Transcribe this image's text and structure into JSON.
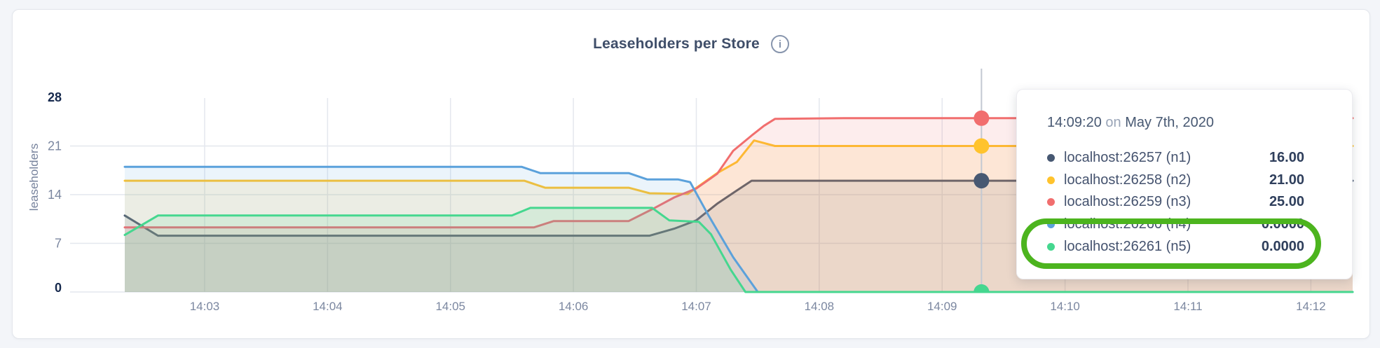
{
  "card": {
    "title": "Leaseholders per Store"
  },
  "chart_data": {
    "type": "area",
    "title": "Leaseholders per Store",
    "xlabel": "",
    "ylabel": "leaseholders",
    "ylim": [
      0,
      28
    ],
    "y_ticks": [
      0,
      7,
      14,
      21,
      28
    ],
    "y_gridlines": [
      7,
      14,
      21
    ],
    "x_domain_minutes": [
      2.35,
      12.34
    ],
    "x_ticks": [
      {
        "t": 3,
        "label": "14:03"
      },
      {
        "t": 4,
        "label": "14:04"
      },
      {
        "t": 5,
        "label": "14:05"
      },
      {
        "t": 6,
        "label": "14:06"
      },
      {
        "t": 7,
        "label": "14:07"
      },
      {
        "t": 8,
        "label": "14:08"
      },
      {
        "t": 9,
        "label": "14:09"
      },
      {
        "t": 10,
        "label": "14:10"
      },
      {
        "t": 11,
        "label": "14:11"
      },
      {
        "t": 12,
        "label": "14:12"
      }
    ],
    "grid_color": "#e4e7ee",
    "hover": {
      "t": 9.32,
      "label": "14:09:20",
      "line_color": "#c3c8d2"
    },
    "fill_opacity": 0.12,
    "series": [
      {
        "name": "localhost:26257 (n1)",
        "color": "#475872",
        "points": [
          [
            2.35,
            11
          ],
          [
            2.62,
            8.1
          ],
          [
            6.62,
            8.1
          ],
          [
            6.82,
            9.1
          ],
          [
            7.0,
            10.3
          ],
          [
            7.17,
            12.7
          ],
          [
            7.33,
            14.6
          ],
          [
            7.45,
            16
          ],
          [
            12.34,
            16
          ]
        ]
      },
      {
        "name": "localhost:26258 (n2)",
        "color": "#FFC32D",
        "points": [
          [
            2.35,
            16
          ],
          [
            5.6,
            16
          ],
          [
            5.77,
            15
          ],
          [
            6.45,
            15
          ],
          [
            6.62,
            14.2
          ],
          [
            6.93,
            14.1
          ],
          [
            7.17,
            17.1
          ],
          [
            7.33,
            18.7
          ],
          [
            7.47,
            21.8
          ],
          [
            7.64,
            21
          ],
          [
            12.34,
            21
          ]
        ]
      },
      {
        "name": "localhost:26259 (n3)",
        "color": "#F16E6E",
        "points": [
          [
            2.35,
            9.3
          ],
          [
            5.68,
            9.3
          ],
          [
            5.84,
            10.2
          ],
          [
            6.45,
            10.2
          ],
          [
            6.64,
            11.9
          ],
          [
            6.82,
            13.6
          ],
          [
            7.0,
            14.9
          ],
          [
            7.17,
            17
          ],
          [
            7.3,
            20.3
          ],
          [
            7.45,
            22.5
          ],
          [
            7.55,
            23.9
          ],
          [
            7.64,
            24.9
          ],
          [
            8.2,
            25
          ],
          [
            12.34,
            25
          ]
        ]
      },
      {
        "name": "localhost:26260 (n4)",
        "color": "#5BA1DB",
        "points": [
          [
            2.35,
            18
          ],
          [
            5.58,
            18
          ],
          [
            5.73,
            17.1
          ],
          [
            6.45,
            17.1
          ],
          [
            6.6,
            16.2
          ],
          [
            6.85,
            16.2
          ],
          [
            6.95,
            15.8
          ],
          [
            7.1,
            11
          ],
          [
            7.3,
            5
          ],
          [
            7.5,
            0
          ],
          [
            12.34,
            0
          ]
        ]
      },
      {
        "name": "localhost:26261 (n5)",
        "color": "#45D78F",
        "points": [
          [
            2.35,
            8.2
          ],
          [
            2.62,
            11
          ],
          [
            5.5,
            11
          ],
          [
            5.65,
            12.1
          ],
          [
            6.64,
            12.1
          ],
          [
            6.78,
            10.3
          ],
          [
            7.02,
            10.1
          ],
          [
            7.12,
            8.3
          ],
          [
            7.28,
            3.2
          ],
          [
            7.4,
            0
          ],
          [
            12.34,
            0
          ]
        ]
      }
    ],
    "axis_colors": {
      "tick": "#7b87a0",
      "tick_extreme": "#16294d",
      "axis_title": "#76829c"
    }
  },
  "tooltip": {
    "time": "14:09:20",
    "connector": "on",
    "date": "May 7th, 2020",
    "rows": [
      {
        "label": "localhost:26257 (n1)",
        "value": "16.00",
        "color": "#475872"
      },
      {
        "label": "localhost:26258 (n2)",
        "value": "21.00",
        "color": "#FFC32D"
      },
      {
        "label": "localhost:26259 (n3)",
        "value": "25.00",
        "color": "#F16E6E"
      },
      {
        "label": "localhost:26260 (n4)",
        "value": "0.0000",
        "color": "#5BA1DB"
      },
      {
        "label": "localhost:26261 (n5)",
        "value": "0.0000",
        "color": "#45D78F"
      }
    ],
    "annotation_color": "#4CB41E"
  }
}
